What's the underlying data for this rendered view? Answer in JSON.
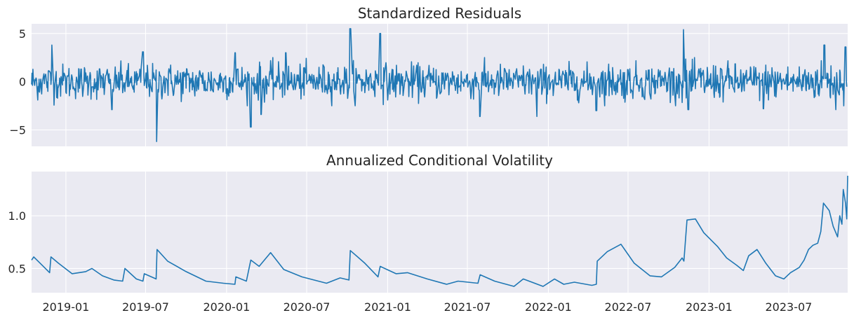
{
  "chart_data": [
    {
      "type": "line",
      "title": "Standardized Residuals",
      "xlabel": "",
      "ylabel": "",
      "x_range": [
        "2018-10-15",
        "2023-11-12"
      ],
      "ylim": [
        -6.7,
        6.0
      ],
      "yticks": [
        -5,
        0,
        5
      ],
      "ytick_labels": [
        "−5",
        "0",
        "5"
      ],
      "grid": true,
      "series_color": "#1f77b4",
      "series": [
        {
          "spikes": [
            {
              "x": "2018-12-01",
              "y": 3.8
            },
            {
              "x": "2019-04-15",
              "y": -2.9
            },
            {
              "x": "2019-06-25",
              "y": 3.1
            },
            {
              "x": "2019-07-27",
              "y": -6.2
            },
            {
              "x": "2020-01-20",
              "y": 3.0
            },
            {
              "x": "2020-02-25",
              "y": -4.7
            },
            {
              "x": "2020-03-20",
              "y": -3.4
            },
            {
              "x": "2020-05-15",
              "y": 3.0
            },
            {
              "x": "2020-10-08",
              "y": 5.5
            },
            {
              "x": "2020-12-15",
              "y": 5.0
            },
            {
              "x": "2021-07-30",
              "y": -3.6
            },
            {
              "x": "2021-12-05",
              "y": -3.6
            },
            {
              "x": "2022-04-20",
              "y": -3.0
            },
            {
              "x": "2022-11-05",
              "y": 5.4
            },
            {
              "x": "2022-11-15",
              "y": -2.9
            },
            {
              "x": "2023-05-05",
              "y": -2.8
            },
            {
              "x": "2023-09-20",
              "y": 3.8
            },
            {
              "x": "2023-10-15",
              "y": -2.9
            },
            {
              "x": "2023-11-07",
              "y": 3.6
            },
            {
              "x": "2023-11-12",
              "y": -2.8
            }
          ]
        }
      ]
    },
    {
      "type": "line",
      "title": "Annualized Conditional Volatility",
      "xlabel": "",
      "ylabel": "",
      "x_range": [
        "2018-10-15",
        "2023-11-12"
      ],
      "ylim": [
        0.27,
        1.42
      ],
      "yticks": [
        0.5,
        1.0
      ],
      "ytick_labels": [
        "0.5",
        "1.0"
      ],
      "xticks": [
        "2019-01-01",
        "2019-07-01",
        "2020-01-01",
        "2020-07-01",
        "2021-01-01",
        "2021-07-01",
        "2022-01-01",
        "2022-07-01",
        "2023-01-01",
        "2023-07-01"
      ],
      "xtick_labels": [
        "2019-01",
        "2019-07",
        "2020-01",
        "2020-07",
        "2021-01",
        "2021-07",
        "2022-01",
        "2022-07",
        "2023-01",
        "2023-07"
      ],
      "grid": true,
      "series_color": "#1f77b4",
      "series": [
        {
          "points": [
            [
              "2018-10-15",
              0.58
            ],
            [
              "2018-10-20",
              0.61
            ],
            [
              "2018-11-01",
              0.56
            ],
            [
              "2018-11-25",
              0.46
            ],
            [
              "2018-11-28",
              0.61
            ],
            [
              "2018-12-15",
              0.55
            ],
            [
              "2019-01-15",
              0.45
            ],
            [
              "2019-02-15",
              0.47
            ],
            [
              "2019-03-01",
              0.5
            ],
            [
              "2019-03-25",
              0.43
            ],
            [
              "2019-04-20",
              0.39
            ],
            [
              "2019-05-10",
              0.38
            ],
            [
              "2019-05-15",
              0.5
            ],
            [
              "2019-06-10",
              0.4
            ],
            [
              "2019-06-25",
              0.38
            ],
            [
              "2019-06-28",
              0.45
            ],
            [
              "2019-07-25",
              0.4
            ],
            [
              "2019-07-27",
              0.68
            ],
            [
              "2019-08-20",
              0.57
            ],
            [
              "2019-10-01",
              0.47
            ],
            [
              "2019-11-15",
              0.38
            ],
            [
              "2019-12-25",
              0.36
            ],
            [
              "2020-01-20",
              0.35
            ],
            [
              "2020-01-22",
              0.42
            ],
            [
              "2020-02-15",
              0.38
            ],
            [
              "2020-02-25",
              0.58
            ],
            [
              "2020-03-15",
              0.52
            ],
            [
              "2020-04-10",
              0.65
            ],
            [
              "2020-05-10",
              0.49
            ],
            [
              "2020-06-20",
              0.42
            ],
            [
              "2020-08-15",
              0.36
            ],
            [
              "2020-09-15",
              0.41
            ],
            [
              "2020-10-05",
              0.39
            ],
            [
              "2020-10-08",
              0.67
            ],
            [
              "2020-11-10",
              0.55
            ],
            [
              "2020-12-10",
              0.42
            ],
            [
              "2020-12-15",
              0.52
            ],
            [
              "2021-01-20",
              0.45
            ],
            [
              "2021-02-15",
              0.46
            ],
            [
              "2021-04-01",
              0.4
            ],
            [
              "2021-05-15",
              0.35
            ],
            [
              "2021-06-10",
              0.38
            ],
            [
              "2021-07-25",
              0.36
            ],
            [
              "2021-07-30",
              0.44
            ],
            [
              "2021-09-01",
              0.38
            ],
            [
              "2021-10-15",
              0.33
            ],
            [
              "2021-11-05",
              0.4
            ],
            [
              "2021-12-20",
              0.33
            ],
            [
              "2022-01-15",
              0.4
            ],
            [
              "2022-02-05",
              0.35
            ],
            [
              "2022-03-01",
              0.37
            ],
            [
              "2022-04-10",
              0.34
            ],
            [
              "2022-04-20",
              0.35
            ],
            [
              "2022-04-22",
              0.57
            ],
            [
              "2022-05-15",
              0.66
            ],
            [
              "2022-06-15",
              0.73
            ],
            [
              "2022-07-15",
              0.55
            ],
            [
              "2022-08-20",
              0.43
            ],
            [
              "2022-09-15",
              0.42
            ],
            [
              "2022-10-15",
              0.51
            ],
            [
              "2022-11-01",
              0.6
            ],
            [
              "2022-11-05",
              0.57
            ],
            [
              "2022-11-12",
              0.96
            ],
            [
              "2022-12-01",
              0.97
            ],
            [
              "2022-12-20",
              0.84
            ],
            [
              "2023-01-20",
              0.71
            ],
            [
              "2023-02-10",
              0.6
            ],
            [
              "2023-03-05",
              0.53
            ],
            [
              "2023-03-20",
              0.48
            ],
            [
              "2023-04-01",
              0.62
            ],
            [
              "2023-04-20",
              0.68
            ],
            [
              "2023-05-10",
              0.55
            ],
            [
              "2023-06-01",
              0.43
            ],
            [
              "2023-06-20",
              0.4
            ],
            [
              "2023-07-05",
              0.46
            ],
            [
              "2023-07-25",
              0.51
            ],
            [
              "2023-08-05",
              0.58
            ],
            [
              "2023-08-15",
              0.68
            ],
            [
              "2023-08-25",
              0.72
            ],
            [
              "2023-09-05",
              0.74
            ],
            [
              "2023-09-12",
              0.85
            ],
            [
              "2023-09-18",
              1.12
            ],
            [
              "2023-10-01",
              1.05
            ],
            [
              "2023-10-10",
              0.9
            ],
            [
              "2023-10-20",
              0.8
            ],
            [
              "2023-10-25",
              1.0
            ],
            [
              "2023-10-30",
              0.92
            ],
            [
              "2023-11-02",
              1.25
            ],
            [
              "2023-11-07",
              1.12
            ],
            [
              "2023-11-10",
              0.97
            ],
            [
              "2023-11-12",
              1.38
            ]
          ]
        }
      ]
    }
  ]
}
